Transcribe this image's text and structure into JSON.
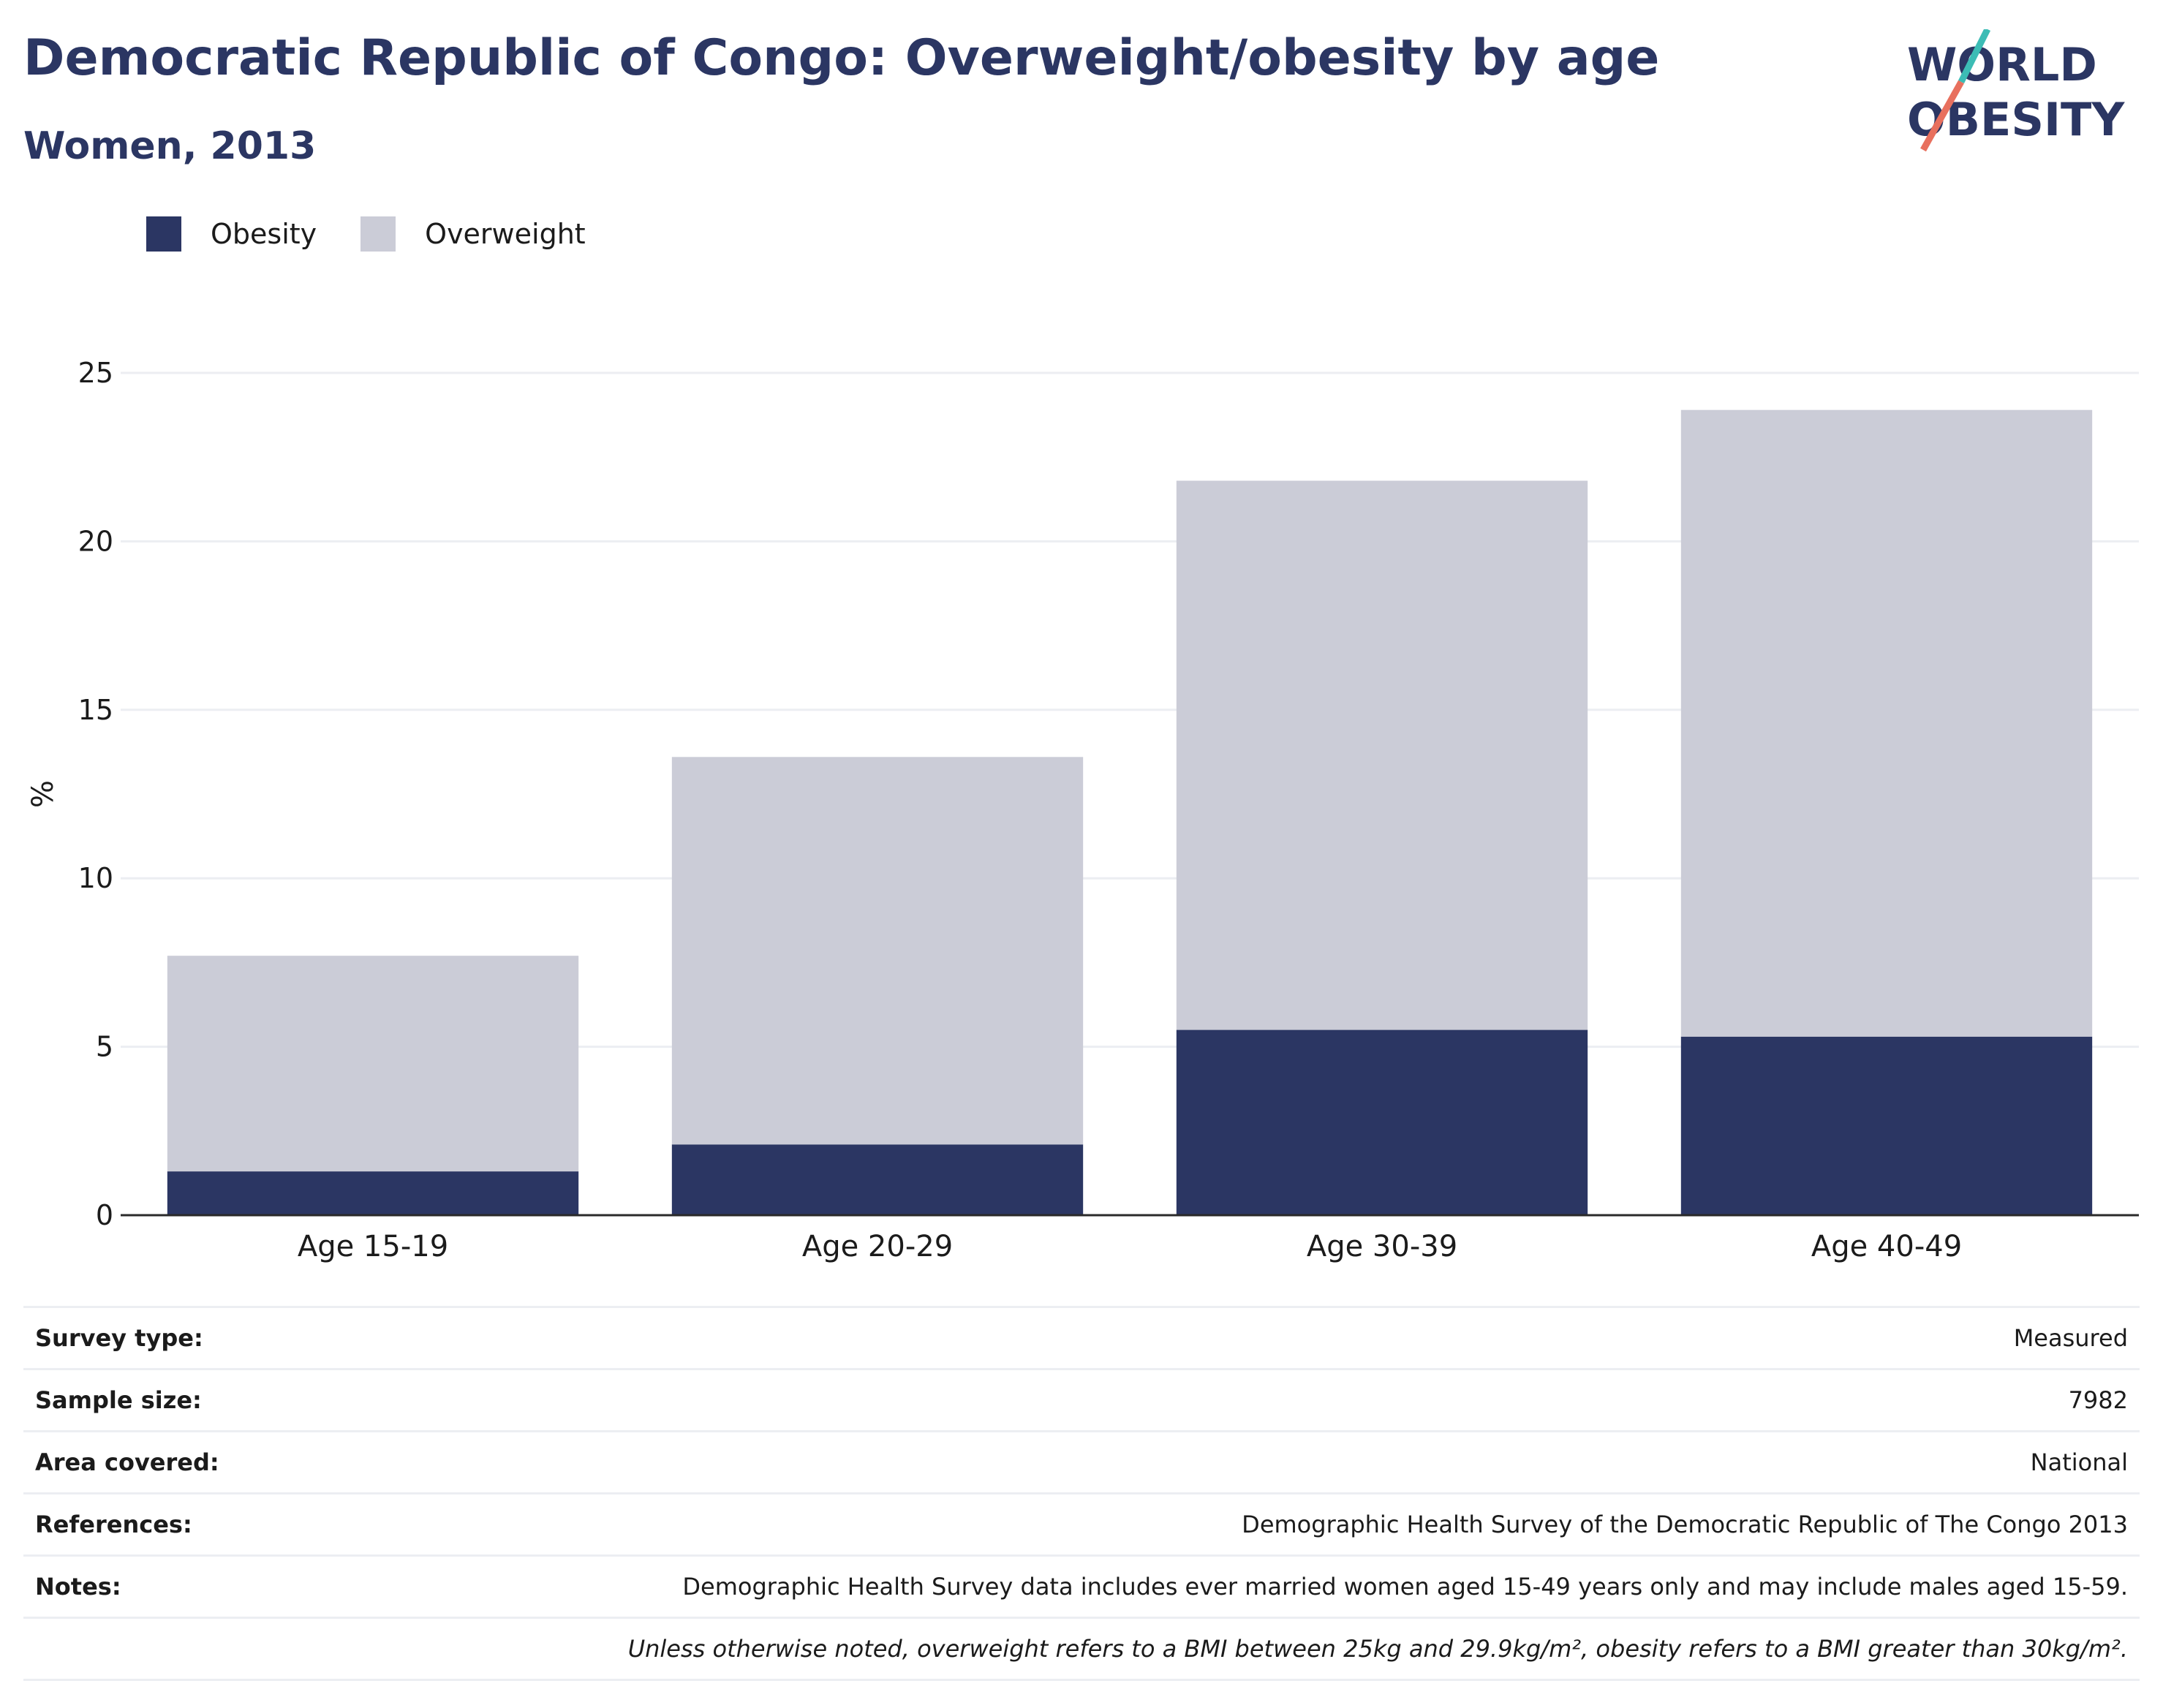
{
  "header": {
    "title": "Democratic Republic of Congo: Overweight/obesity by age",
    "subtitle": "Women, 2013"
  },
  "logo": {
    "line1": "WORLD",
    "line2": "OBESITY",
    "colors": [
      "#2b3663",
      "#3cbcb5",
      "#e8705e"
    ]
  },
  "legend": [
    {
      "label": "Obesity",
      "color": "#2b3663"
    },
    {
      "label": "Overweight",
      "color": "#cbccd7"
    }
  ],
  "chart_data": {
    "type": "bar",
    "stacked": true,
    "categories": [
      "Age 15-19",
      "Age 20-29",
      "Age 30-39",
      "Age 40-49"
    ],
    "series": [
      {
        "name": "Obesity",
        "values": [
          1.3,
          2.1,
          5.5,
          5.3
        ],
        "color": "#2b3663"
      },
      {
        "name": "Overweight",
        "values": [
          6.4,
          11.5,
          16.3,
          18.6
        ],
        "color": "#cbccd7"
      }
    ],
    "ylabel": "%",
    "ylim": [
      0,
      25
    ],
    "yticks": [
      0,
      5,
      10,
      15,
      20,
      25
    ],
    "grid": true,
    "legend_position": "top-left"
  },
  "info": [
    {
      "label": "Survey type:",
      "value": "Measured"
    },
    {
      "label": "Sample size:",
      "value": "7982"
    },
    {
      "label": "Area covered:",
      "value": "National"
    },
    {
      "label": "References:",
      "value": "Demographic Health Survey of the Democratic Republic of The Congo 2013"
    },
    {
      "label": "Notes:",
      "value": "Demographic Health Survey data includes ever married women aged 15-49 years only and may include males aged 15-59."
    }
  ],
  "footnote": "Unless otherwise noted, overweight refers to a BMI between 25kg and 29.9kg/m², obesity refers to a BMI greater than 30kg/m²."
}
